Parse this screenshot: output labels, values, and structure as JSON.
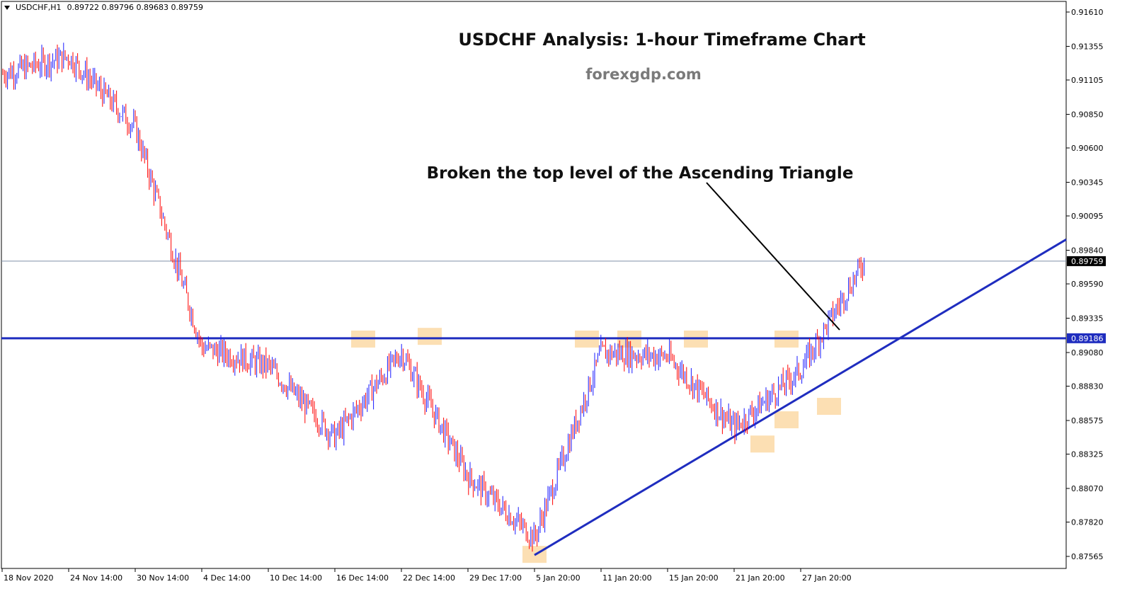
{
  "header": {
    "symbol": "USDCHF,H1",
    "ohlc": "0.89722 0.89796 0.89683 0.89759"
  },
  "colors": {
    "bull_candle": "#1a1aff",
    "bear_candle": "#ff0000",
    "level_line": "#1f2dbf",
    "highlight": "#fbd9a6",
    "current_price_line": "#7f8fa6",
    "arrow": "#000000"
  },
  "chart_data": {
    "type": "candlestick",
    "title": "USDCHF Analysis: 1-hour Timeframe Chart",
    "subtitle": "forexgdp.com",
    "annotation": "Broken the top level of the Ascending Triangle",
    "y_ticks": [
      "0.91610",
      "0.91355",
      "0.91105",
      "0.90850",
      "0.90600",
      "0.90345",
      "0.90095",
      "0.89840",
      "0.89590",
      "0.89335",
      "0.89080",
      "0.88830",
      "0.88575",
      "0.88325",
      "0.88070",
      "0.87820",
      "0.87565"
    ],
    "x_ticks": [
      "18 Nov 2020",
      "24 Nov 14:00",
      "30 Nov 14:00",
      "4 Dec 14:00",
      "10 Dec 14:00",
      "16 Dec 14:00",
      "22 Dec 14:00",
      "29 Dec 17:00",
      "5 Jan 20:00",
      "11 Jan 20:00",
      "15 Jan 20:00",
      "21 Jan 20:00",
      "27 Jan 20:00"
    ],
    "ylim": [
      0.8752,
      0.9166
    ],
    "current_price": "0.89759",
    "resistance_level": "0.89186",
    "trendline": [
      {
        "date": "5 Jan 20:00",
        "price": 0.87575
      },
      {
        "date": "right edge",
        "price": 0.8992
      }
    ],
    "price_path": [
      {
        "x": "18 Nov 2020",
        "y": 0.9115
      },
      {
        "x": "24 Nov 14:00",
        "y": 0.9128
      },
      {
        "x": "30 Nov 14:00",
        "y": 0.9075
      },
      {
        "x": "4 Dec 14:00",
        "y": 0.8912
      },
      {
        "x": "10 Dec 14:00",
        "y": 0.8898
      },
      {
        "x": "16 Dec 14:00",
        "y": 0.8845
      },
      {
        "x": "22 Dec 14:00",
        "y": 0.8908
      },
      {
        "x": "29 Dec 17:00",
        "y": 0.8816
      },
      {
        "x": "5 Jan 20:00",
        "y": 0.877
      },
      {
        "x": "11 Jan 20:00",
        "y": 0.8908
      },
      {
        "x": "15 Jan 20:00",
        "y": 0.8905
      },
      {
        "x": "21 Jan 20:00",
        "y": 0.8852
      },
      {
        "x": "27 Jan 20:00",
        "y": 0.8895
      },
      {
        "x": "last bar",
        "y": 0.8976
      }
    ],
    "highlighted_touches": [
      {
        "type": "resistance",
        "x": "16 Dec 14:00 +",
        "y": 0.8918
      },
      {
        "type": "resistance",
        "x": "22 Dec 14:00 +",
        "y": 0.892
      },
      {
        "type": "resistance",
        "x": "11 Jan 20:00 -",
        "y": 0.8918
      },
      {
        "type": "resistance",
        "x": "11 Jan 20:00 +",
        "y": 0.8918
      },
      {
        "type": "resistance",
        "x": "15 Jan 20:00 +",
        "y": 0.8918
      },
      {
        "type": "resistance",
        "x": "27 Jan 20:00 -",
        "y": 0.8918
      },
      {
        "type": "support",
        "x": "5 Jan 20:00",
        "y": 0.8758
      },
      {
        "type": "support",
        "x": "21 Jan 20:00 +",
        "y": 0.884
      },
      {
        "type": "support",
        "x": "27 Jan 20:00 -",
        "y": 0.8858
      },
      {
        "type": "support",
        "x": "27 Jan 20:00 +",
        "y": 0.8868
      }
    ]
  }
}
